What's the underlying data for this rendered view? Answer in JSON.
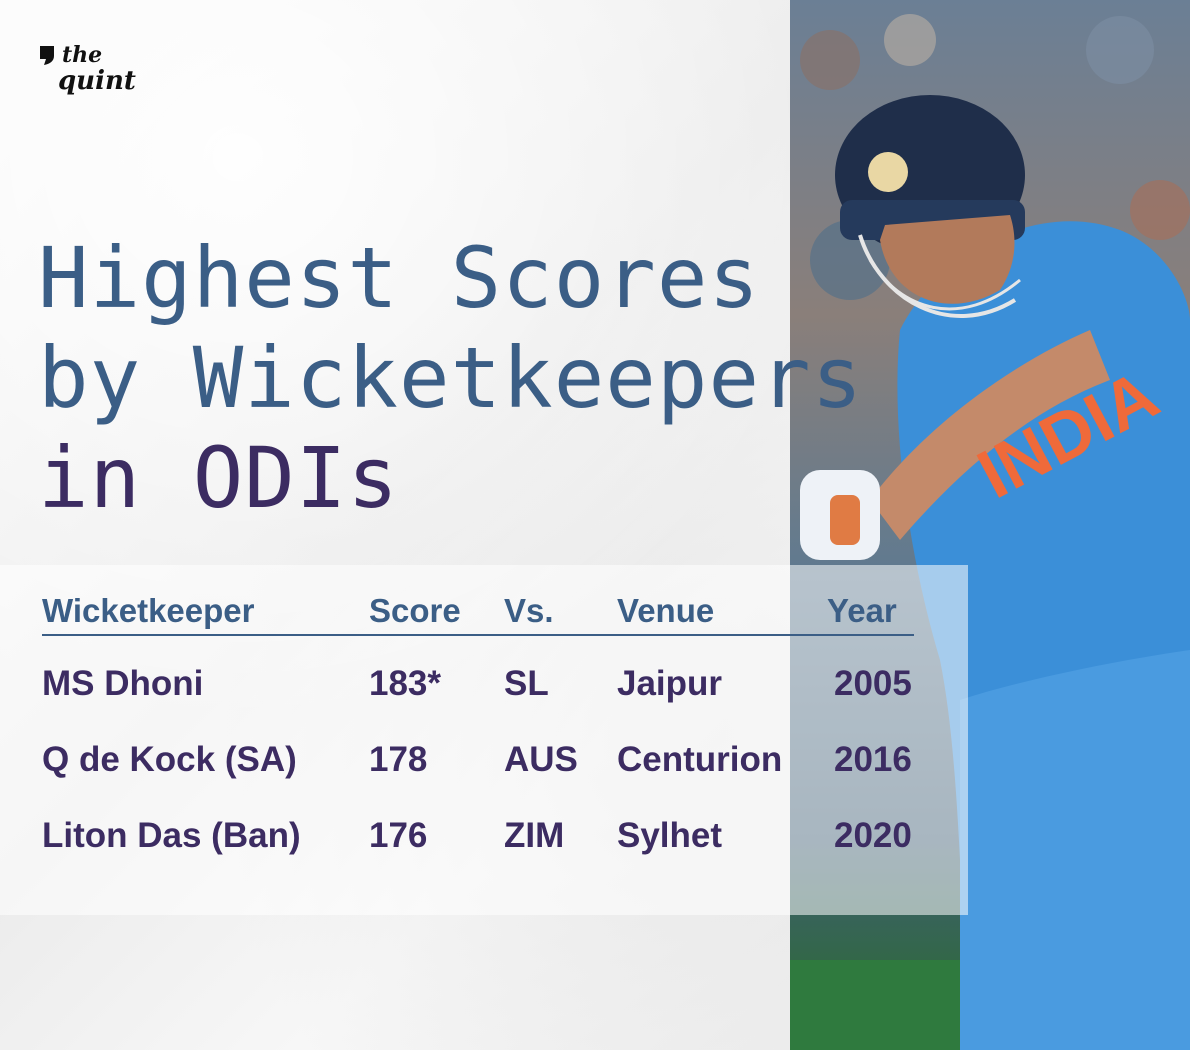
{
  "brand": {
    "line1": "the",
    "line2": "quint"
  },
  "title": {
    "line1": "Highest Scores",
    "line2": "by Wicketkeepers",
    "line3": "in ODIs"
  },
  "table": {
    "columns": [
      "Wicketkeeper",
      "Score",
      "Vs.",
      "Venue",
      "Year"
    ],
    "rows": [
      {
        "keeper": "MS Dhoni",
        "score": "183*",
        "vs": "SL",
        "venue": "Jaipur",
        "year": "2005"
      },
      {
        "keeper": "Q de Kock (SA)",
        "score": "178",
        "vs": "AUS",
        "venue": "Centurion",
        "year": "2016"
      },
      {
        "keeper": "Liton Das (Ban)",
        "score": "176",
        "vs": "ZIM",
        "venue": "Sylhet",
        "year": "2020"
      }
    ]
  },
  "colors": {
    "title_blue": "#3b5e86",
    "title_purple": "#3c2c62",
    "jersey": "#3b8fd8"
  }
}
